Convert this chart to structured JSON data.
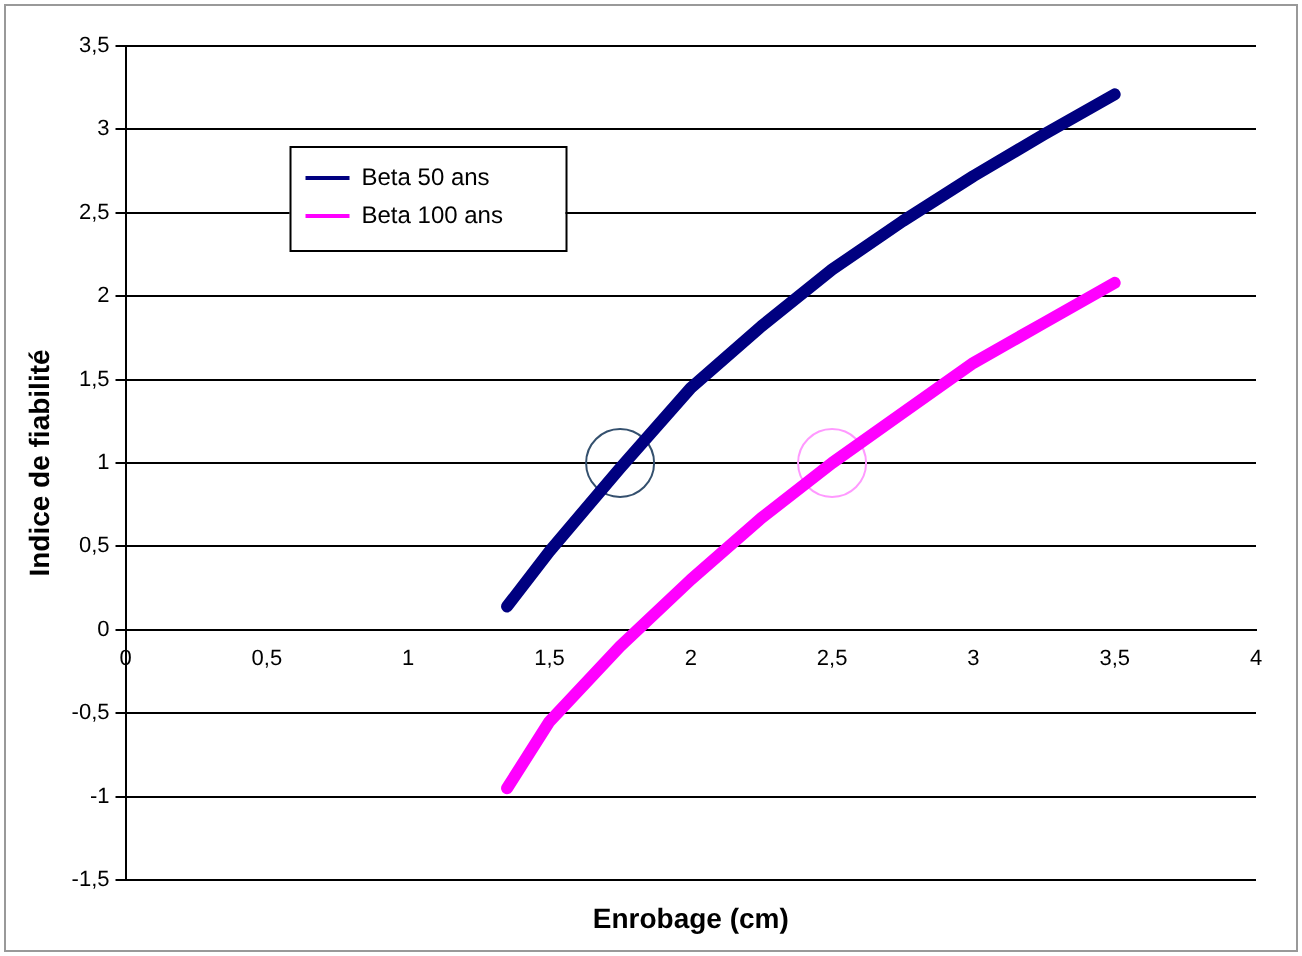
{
  "chart_data": {
    "type": "line",
    "xlabel": "Enrobage (cm)",
    "ylabel": "Indice de fiabilité",
    "xlim": [
      0,
      4
    ],
    "xticks": [
      0,
      {
        "value": 0.5,
        "label": "0,5"
      },
      1,
      {
        "value": 1.5,
        "label": "1,5"
      },
      2,
      {
        "value": 2.5,
        "label": "2,5"
      },
      3,
      {
        "value": 3.5,
        "label": "3,5"
      },
      4
    ],
    "ylim": [
      -1.5,
      3.5
    ],
    "yticks": [
      {
        "value": -1.5,
        "label": "-1,5"
      },
      -1,
      {
        "value": -0.5,
        "label": "-0,5"
      },
      0,
      {
        "value": 0.5,
        "label": "0,5"
      },
      1,
      {
        "value": 1.5,
        "label": "1,5"
      },
      2,
      {
        "value": 2.5,
        "label": "2,5"
      },
      3,
      {
        "value": 3.5,
        "label": "3,5"
      }
    ],
    "grid": "y",
    "legend": "top left",
    "marker": "none",
    "line_style": "solid",
    "series": [
      {
        "name": "Beta 50 ans",
        "color": "#000080",
        "x": [
          1.35,
          1.5,
          1.75,
          2,
          2.25,
          2.5,
          2.75,
          3,
          3.25,
          3.5
        ],
        "values": [
          0.14,
          0.47,
          0.97,
          1.45,
          1.82,
          2.16,
          2.45,
          2.72,
          2.97,
          3.21
        ]
      },
      {
        "name": "Beta 100 ans",
        "color": "#ff00ff",
        "x": [
          1.35,
          1.5,
          1.75,
          2,
          2.25,
          2.5,
          2.75,
          3,
          3.25,
          3.5
        ],
        "values": [
          -0.95,
          -0.55,
          -0.1,
          0.3,
          0.67,
          1.0,
          1.3,
          1.6,
          1.84,
          2.08
        ]
      },
      {
        "type": "scatter",
        "marker": "circle",
        "color": "#34506e",
        "x": [
          1.75
        ],
        "values": [
          1
        ]
      },
      {
        "type": "scatter",
        "marker": "circle",
        "color": "#ff99ff",
        "x": [
          2.5
        ],
        "values": [
          1
        ]
      }
    ]
  }
}
